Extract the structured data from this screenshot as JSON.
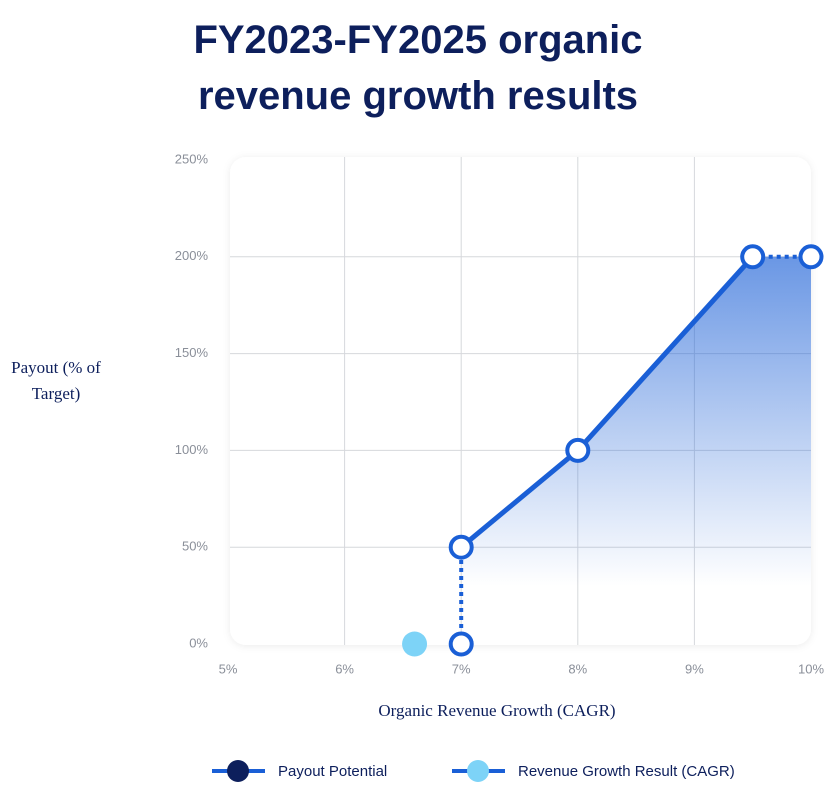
{
  "chart_data": {
    "type": "line",
    "title": "FY2023-FY2025 organic revenue growth results",
    "xlabel": "Organic Revenue Growth (CAGR)",
    "ylabel": "Payout (% of Target)",
    "xlim": [
      5,
      10
    ],
    "ylim": [
      0,
      250
    ],
    "xticks": [
      {
        "value": 5,
        "label": "5%"
      },
      {
        "value": 6,
        "label": "6%"
      },
      {
        "value": 7,
        "label": "7%"
      },
      {
        "value": 8,
        "label": "8%"
      },
      {
        "value": 9,
        "label": "9%"
      },
      {
        "value": 10,
        "label": "10%"
      }
    ],
    "yticks": [
      {
        "value": 0,
        "label": "0%"
      },
      {
        "value": 50,
        "label": "50%"
      },
      {
        "value": 100,
        "label": "100%"
      },
      {
        "value": 150,
        "label": "150%"
      },
      {
        "value": 200,
        "label": "200%"
      },
      {
        "value": 250,
        "label": "250%"
      }
    ],
    "grid": true,
    "series": [
      {
        "name": "Payout Potential",
        "mode": "line",
        "color": "#1a5fd6",
        "legend_marker_color": "#0d1f5c",
        "x": [
          7,
          7,
          8,
          9.5,
          10
        ],
        "values": [
          0,
          50,
          100,
          200,
          200
        ],
        "segment_styles": [
          "dotted",
          "solid",
          "solid",
          "dotted"
        ],
        "area_fill": true
      },
      {
        "name": "Revenue Growth Result (CAGR)",
        "mode": "point",
        "color": "#7dd3f7",
        "legend_marker_color": "#7dd3f7",
        "x": [
          6.6
        ],
        "values": [
          0
        ]
      }
    ]
  }
}
